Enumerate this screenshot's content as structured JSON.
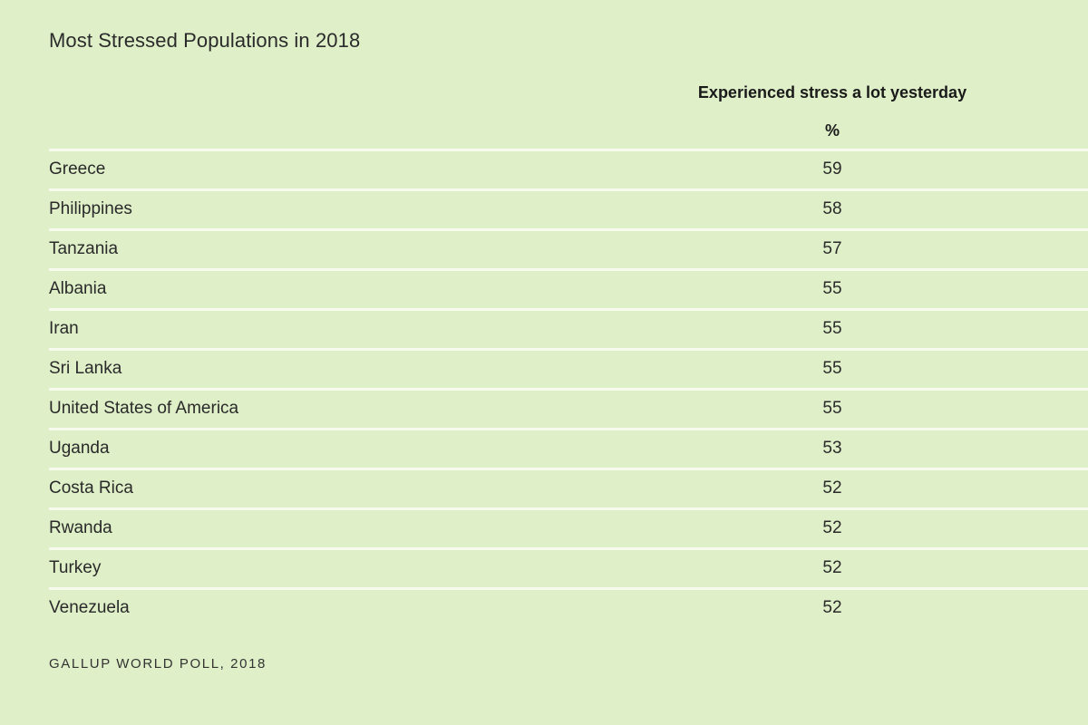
{
  "chart_data": {
    "type": "table",
    "title": "Most Stressed Populations in 2018",
    "column_header": "Experienced stress a lot yesterday",
    "unit": "%",
    "categories": [
      "Greece",
      "Philippines",
      "Tanzania",
      "Albania",
      "Iran",
      "Sri Lanka",
      "United States of America",
      "Uganda",
      "Costa Rica",
      "Rwanda",
      "Turkey",
      "Venezuela"
    ],
    "values": [
      59,
      58,
      57,
      55,
      55,
      55,
      55,
      53,
      52,
      52,
      52,
      52
    ],
    "source": "GALLUP WORLD POLL, 2018"
  },
  "colors": {
    "background": "#dfefc8",
    "divider": "#f6fbee",
    "text": "#2a2a2a"
  }
}
